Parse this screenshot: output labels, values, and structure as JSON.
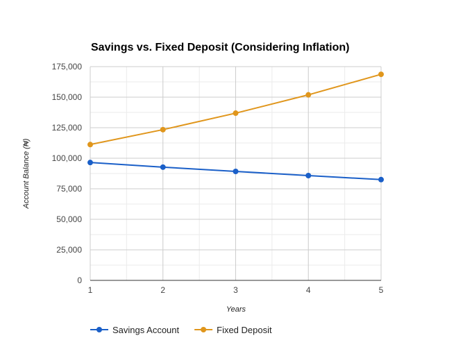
{
  "chart_data": {
    "type": "line",
    "title": "Savings vs. Fixed Deposit (Considering Inflation)",
    "xlabel": "Years",
    "ylabel": "Account Balance (₦)",
    "x": [
      1,
      2,
      3,
      4,
      5
    ],
    "x_ticks": [
      "1",
      "2",
      "3",
      "4",
      "5"
    ],
    "xlim": [
      1,
      5
    ],
    "ylim": [
      0,
      175000
    ],
    "y_ticks": [
      0,
      25000,
      50000,
      75000,
      100000,
      125000,
      150000,
      175000
    ],
    "y_tick_labels": [
      "0",
      "25,000",
      "50,000",
      "75,000",
      "100,000",
      "125,000",
      "150,000",
      "175,000"
    ],
    "grid": true,
    "legend_position": "bottom-left",
    "series": [
      {
        "name": "Savings Account",
        "color": "#1a5fc8",
        "values": [
          96500,
          92700,
          89200,
          85800,
          82500
        ]
      },
      {
        "name": "Fixed Deposit",
        "color": "#e0961c",
        "values": [
          111200,
          123400,
          136900,
          151900,
          168700
        ]
      }
    ]
  }
}
